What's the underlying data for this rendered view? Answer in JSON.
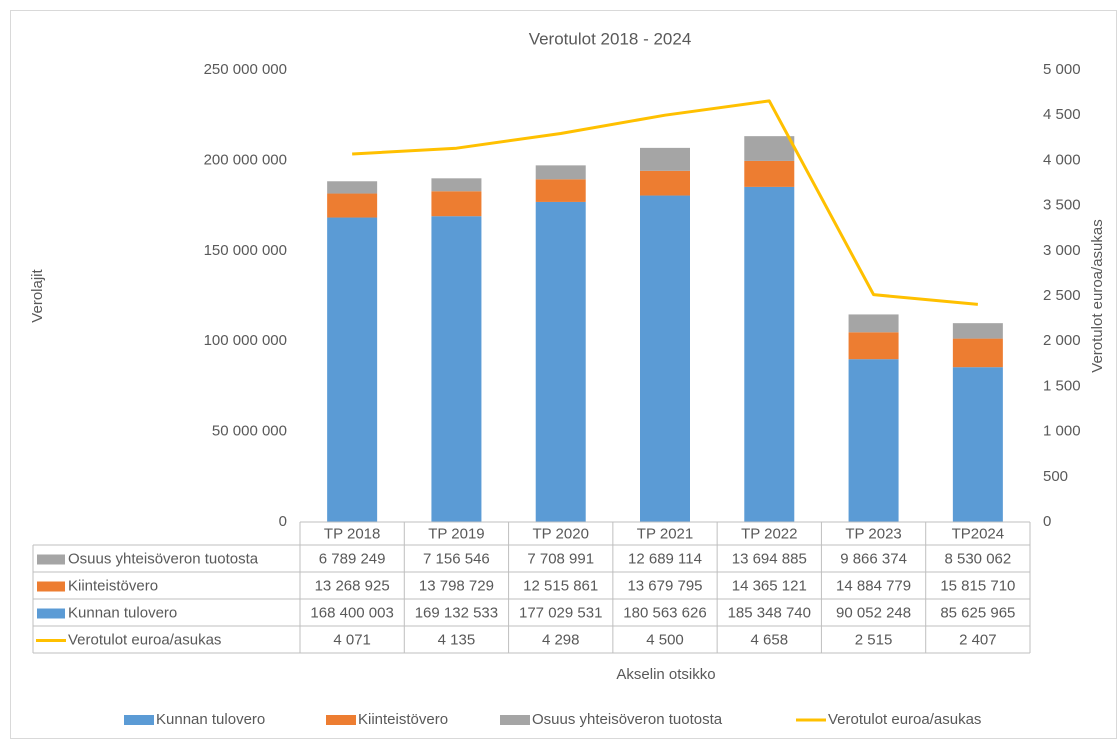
{
  "chart_data": {
    "type": "bar",
    "stacked": true,
    "title": "Verotulot 2018 - 2024",
    "ylabel": "Verolajit",
    "y2label": "Verotulot euroa/asukas",
    "xlabel": "Akselin otsikko",
    "categories": [
      "TP 2018",
      "TP 2019",
      "TP 2020",
      "TP 2021",
      "TP 2022",
      "TP 2023",
      "TP2024"
    ],
    "series": [
      {
        "name": "Kunnan tulovero",
        "type": "bar",
        "color": "#5b9bd5",
        "values": [
          168400003,
          169132533,
          177029531,
          180563626,
          185348740,
          90052248,
          85625965
        ],
        "value_labels": [
          "168 400 003",
          "169 132 533",
          "177 029 531",
          "180 563 626",
          "185 348 740",
          "90 052 248",
          "85 625 965"
        ]
      },
      {
        "name": "Kiinteistövero",
        "type": "bar",
        "color": "#ed7d31",
        "values": [
          13268925,
          13798729,
          12515861,
          13679795,
          14365121,
          14884779,
          15815710
        ],
        "value_labels": [
          "13 268 925",
          "13 798 729",
          "12 515 861",
          "13 679 795",
          "14 365 121",
          "14 884 779",
          "15 815 710"
        ]
      },
      {
        "name": "Osuus yhteisöveron tuotosta",
        "type": "bar",
        "color": "#a5a5a5",
        "values": [
          6789249,
          7156546,
          7708991,
          12689114,
          13694885,
          9866374,
          8530062
        ],
        "value_labels": [
          "6 789 249",
          "7 156 546",
          "7 708 991",
          "12 689 114",
          "13 694 885",
          "9 866 374",
          "8 530 062"
        ]
      },
      {
        "name": "Verotulot euroa/asukas",
        "type": "line",
        "axis": "y2",
        "color": "#ffc000",
        "values": [
          4071,
          4135,
          4298,
          4500,
          4658,
          2515,
          2407
        ],
        "value_labels": [
          "4 071",
          "4 135",
          "4 298",
          "4 500",
          "4 658",
          "2 515",
          "2 407"
        ]
      }
    ],
    "ylim": [
      0,
      250000000
    ],
    "yticks": [
      0,
      {
        "value": 50000000,
        "label": "50 000 000"
      },
      {
        "value": 100000000,
        "label": "100 000 000"
      },
      {
        "value": 150000000,
        "label": "150 000 000"
      },
      {
        "value": 200000000,
        "label": "200 000 000"
      },
      {
        "value": 250000000,
        "label": "250 000 000"
      }
    ],
    "y2lim": [
      0,
      5000
    ],
    "y2ticks": [
      0,
      500,
      {
        "value": 1000,
        "label": "1 000"
      },
      {
        "value": 1500,
        "label": "1 500"
      },
      {
        "value": 2000,
        "label": "2 000"
      },
      {
        "value": 2500,
        "label": "2 500"
      },
      {
        "value": 3000,
        "label": "3 000"
      },
      {
        "value": 3500,
        "label": "3 500"
      },
      {
        "value": 4000,
        "label": "4 000"
      },
      {
        "value": 4500,
        "label": "4 500"
      },
      {
        "value": 5000,
        "label": "5 000"
      }
    ],
    "grid": false,
    "legend": "bottom"
  }
}
